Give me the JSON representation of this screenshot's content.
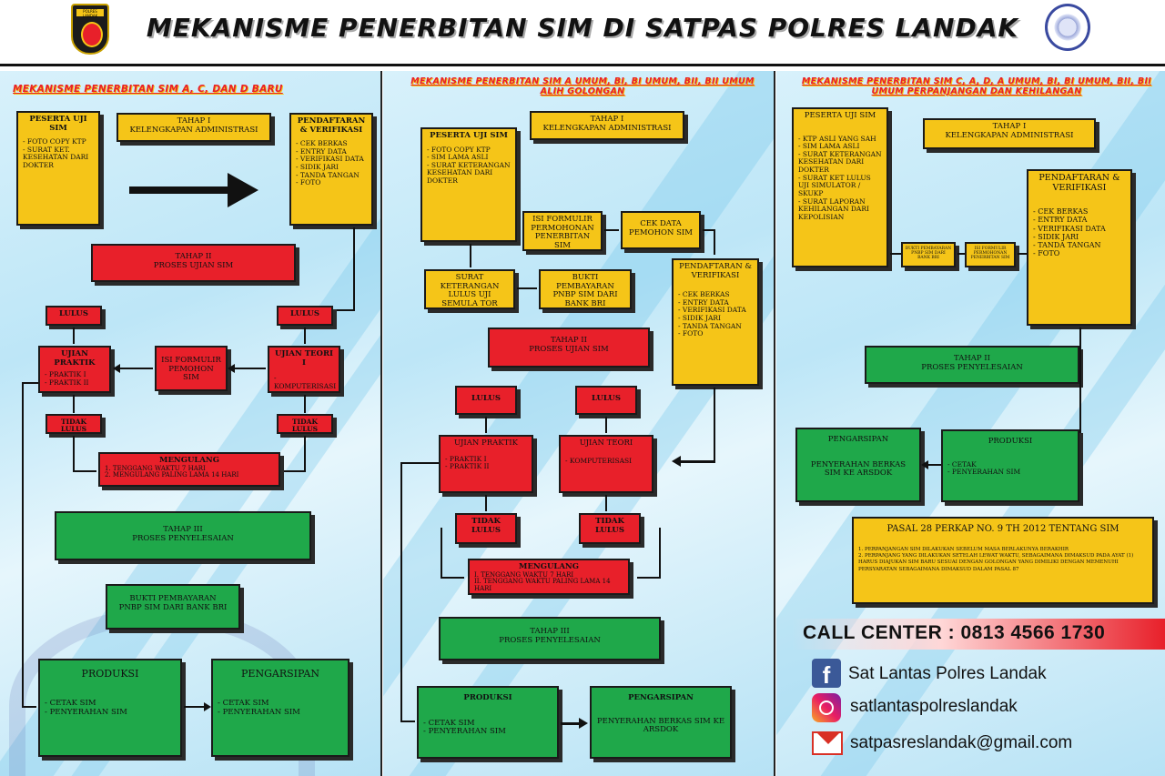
{
  "header": {
    "title": "MEKANISME PENERBITAN SIM DI SATPAS POLRES LANDAK",
    "logo_left_text": "POLRES LANDAK"
  },
  "p1": {
    "title": "MEKANISME PENERBITAN SIM A, C, DAN D BARU",
    "peserta_title": "PESERTA UJI SIM",
    "peserta_items": [
      "FOTO COPY KTP",
      "SURAT KET. KESEHATAN DARI DOKTER"
    ],
    "tahap1": "TAHAP I\nKELENGKAPAN ADMINISTRASI",
    "pendaftaran_title": "PENDAFTARAN & VERIFIKASI",
    "pendaftaran_items": [
      "CEK BERKAS",
      "ENTRY DATA",
      "VERIFIKASI DATA",
      "SIDIK JARI",
      "TANDA TANGAN",
      "FOTO"
    ],
    "tahap2": "TAHAP II\nPROSES UJIAN SIM",
    "lulus": "LULUS",
    "praktik_title": "UJIAN PRAKTIK",
    "praktik_items": [
      "PRAKTIK I",
      "PRAKTIK II"
    ],
    "isi_form": "ISI FORMULIR PEMOHON SIM",
    "teori_title": "UJIAN TEORI I",
    "teori_items": [
      "KOMPUTERISASI"
    ],
    "tidak_lulus": "TIDAK LULUS",
    "mengulang_title": "MENGULANG",
    "mengulang_items": [
      "1. TENGGANG WAKTU 7 HARI",
      "2. MENGULANG PALING LAMA 14 HARI"
    ],
    "tahap3": "TAHAP III\nPROSES PENYELESAIAN",
    "bukti": "BUKTI PEMBAYARAN\nPNBP SIM DARI BANK BRI",
    "produksi_title": "PRODUKSI",
    "produksi_items": [
      "CETAK SIM",
      "PENYERAHAN SIM"
    ],
    "pengarsipan_title": "PENGARSIPAN",
    "pengarsipan_items": [
      "CETAK SIM",
      "PENYERAHAN SIM"
    ]
  },
  "p2": {
    "title": "MEKANISME PENERBITAN SIM A UMUM, BI, BI UMUM, BII, BII UMUM ALIH GOLONGAN",
    "tahap1": "TAHAP I\nKELENGKAPAN ADMINISTRASI",
    "peserta_title": "PESERTA UJI SIM",
    "peserta_items": [
      "FOTO COPY KTP",
      "SIM LAMA ASLI",
      "SURAT KETERANGAN KESEHATAN DARI DOKTER"
    ],
    "isi_form": "ISI FORMULIR PERMOHONAN PENERBITAN SIM",
    "cek_data": "CEK DATA PEMOHON SIM",
    "surat": "SURAT KETERANGAN LULUS UJI SEMULA TOR",
    "bukti": "BUKTI PEMBAYARAN PNBP SIM DARI BANK BRI",
    "pendaftaran_title": "PENDAFTARAN & VERIFIKASI",
    "pendaftaran_items": [
      "CEK BERKAS",
      "ENTRY DATA",
      "VERIFIKASI DATA",
      "SIDIK JARI",
      "TANDA TANGAN",
      "FOTO"
    ],
    "tahap2": "TAHAP II\nPROSES UJIAN SIM",
    "lulus": "LULUS",
    "praktik_title": "UJIAN PRAKTIK",
    "praktik_items": [
      "PRAKTIK I",
      "PRAKTIK II"
    ],
    "teori_title": "UJIAN TEORI",
    "teori_items": [
      "KOMPUTERISASI"
    ],
    "tidak_lulus": "TIDAK LULUS",
    "mengulang_title": "MENGULANG",
    "mengulang_items": [
      "I. TENGGANG WAKTU 7 HARI",
      "II. TENGGANG WAKTU PALING LAMA 14 HARI"
    ],
    "tahap3": "TAHAP III\nPROSES PENYELESAIAN",
    "produksi_title": "PRODUKSI",
    "produksi_items": [
      "CETAK SIM",
      "PENYERAHAN SIM"
    ],
    "pengarsipan_title": "PENGARSIPAN",
    "pengarsipan_body": "PENYERAHAN BERKAS SIM KE ARSDOK"
  },
  "p3": {
    "title": "MEKANISME PENERBITAN SIM C, A, D, A UMUM, BI, BI UMUM, BII, BII UMUM PERPANJANGAN DAN KEHILANGAN",
    "peserta_title": "PESERTA UJI SIM",
    "peserta_items": [
      "KTP ASLI YANG SAH",
      "SIM LAMA ASLI",
      "SURAT KETERANGAN KESEHATAN DARI DOKTER",
      "SURAT KET LULUS UJI SIMULATOR / SKUKP",
      "SURAT LAPORAN KEHILANGAN DARI KEPOLISIAN"
    ],
    "tahap1": "TAHAP I\nKELENGKAPAN ADMINISTRASI",
    "bukti_small": "BUKTI PEMBAYARAN PNBP SIM DARI BANK BRI",
    "isi_small": "ISI FORMULIR PERMOHONAN PENERBITAN SIM",
    "pendaftaran_title": "PENDAFTARAN & VERIFIKASI",
    "pendaftaran_items": [
      "CEK BERKAS",
      "ENTRY DATA",
      "VERIFIKASI DATA",
      "SIDIK JARI",
      "TANDA TANGAN",
      "FOTO"
    ],
    "tahap2": "TAHAP II\nPROSES PENYELESAIAN",
    "pengarsipan_title": "PENGARSIPAN",
    "pengarsipan_body": "PENYERAHAN BERKAS SIM KE ARSDOK",
    "produksi_title": "PRODUKSI",
    "produksi_items": [
      "CETAK",
      "PENYERAHAN SIM"
    ],
    "pasal_title": "PASAL 28 PERKAP NO. 9 TH 2012 TENTANG SIM",
    "pasal_items": [
      "1. PERPANJANGAN SIM DILAKUKAN SEBELUM MASA BERLAKUNYA BERAKHIR",
      "2. PERPANJANG YANG DILAKUKAN SETELAH LEWAT WAKTU, SEBAGAIMANA DIMAKSUD PADA AYAT (1) HARUS DIAJUKAN SIM BARU SESUAI DENGAN GOLONGAN YANG DIMILIKI DENGAN MEMENUHI PERSYARATAN SEBAGAIMANA DIMAKSUD DALAM PASAL 87"
    ]
  },
  "contact": {
    "call_center": "CALL CENTER : 0813 4566 1730",
    "facebook": "Sat Lantas Polres Landak",
    "instagram": "satlantaspolreslandak",
    "email": "satpasreslandak@gmail.com"
  },
  "colors": {
    "yellow": "#f5c518",
    "red": "#e8202a",
    "green": "#1fa84a",
    "accent_title": "#e8202a"
  }
}
